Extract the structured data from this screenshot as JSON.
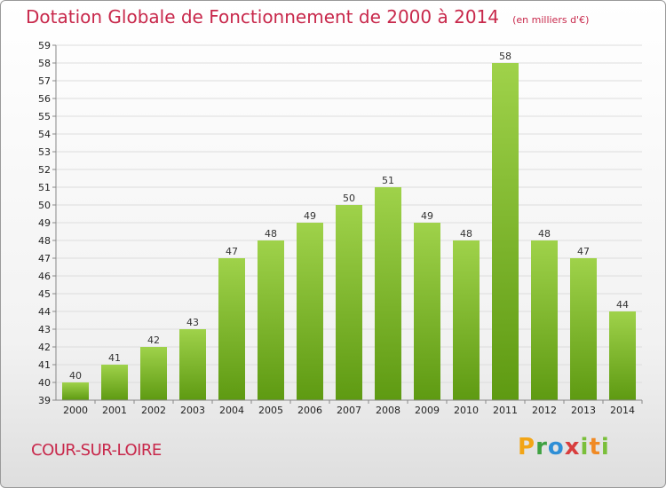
{
  "title": "Dotation Globale de Fonctionnement de 2000 à 2014",
  "unit": "(en milliers d'€)",
  "commune": "COUR-SUR-LOIRE",
  "logo": {
    "p": "P",
    "r": "r",
    "o": "o",
    "x": "x",
    "i1": "i",
    "t": "t",
    "i2": "i"
  },
  "colors": {
    "bar_top": "#9fd24a",
    "bar_bottom": "#5e9a12",
    "title": "#c8284b",
    "grid": "#dddddd"
  },
  "chart_data": {
    "type": "bar",
    "categories": [
      "2000",
      "2001",
      "2002",
      "2003",
      "2004",
      "2005",
      "2006",
      "2007",
      "2008",
      "2009",
      "2010",
      "2011",
      "2012",
      "2013",
      "2014"
    ],
    "values": [
      40,
      41,
      42,
      43,
      47,
      48,
      49,
      50,
      51,
      49,
      48,
      58,
      48,
      47,
      44
    ],
    "title": "Dotation Globale de Fonctionnement de 2000 à 2014",
    "ylim": [
      39,
      59
    ],
    "yticks": [
      39,
      40,
      41,
      42,
      43,
      44,
      45,
      46,
      47,
      48,
      49,
      50,
      51,
      52,
      53,
      54,
      55,
      56,
      57,
      58,
      59
    ],
    "grid": true,
    "data_labels": true
  }
}
